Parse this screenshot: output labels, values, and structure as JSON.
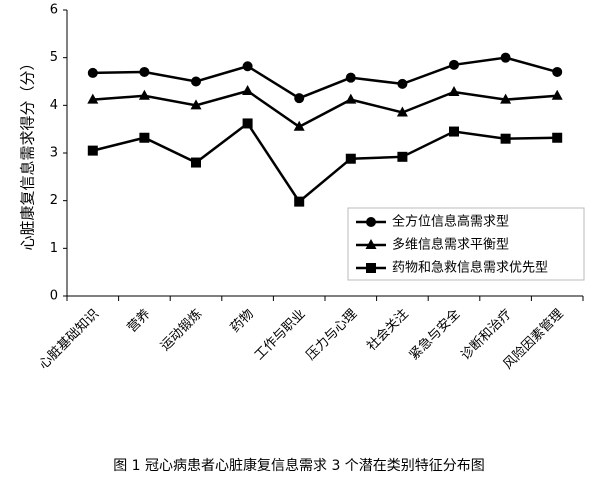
{
  "chart_data": {
    "type": "line",
    "y_label": "心脏康复信息需求得分（分）",
    "caption": "图 1 冠心病患者心脏康复信息需求 3 个潜在类别特征分布图",
    "categories": [
      "心脏基础知识",
      "营养",
      "运动锻炼",
      "药物",
      "工作与职业",
      "压力与心理",
      "社会关注",
      "紧急与安全",
      "诊断和治疗",
      "风险因素管理"
    ],
    "series": [
      {
        "name": "全方位信息高需求型",
        "color": "#000000",
        "marker": "circle",
        "values": [
          4.68,
          4.7,
          4.5,
          4.82,
          4.15,
          4.58,
          4.45,
          4.85,
          5.0,
          4.7
        ]
      },
      {
        "name": "多维信息需求平衡型",
        "color": "#000000",
        "marker": "triangle",
        "values": [
          4.12,
          4.2,
          4.0,
          4.3,
          3.55,
          4.12,
          3.85,
          4.28,
          4.12,
          4.2
        ]
      },
      {
        "name": "药物和急救信息需求优先型",
        "color": "#000000",
        "marker": "square",
        "values": [
          3.05,
          3.32,
          2.8,
          3.62,
          1.98,
          2.88,
          2.92,
          3.45,
          3.3,
          3.32
        ]
      }
    ],
    "ylim": [
      0,
      6
    ],
    "yticks": [
      0,
      1,
      2,
      3,
      4,
      5,
      6
    ],
    "grid": false,
    "legend": "lower-right"
  }
}
